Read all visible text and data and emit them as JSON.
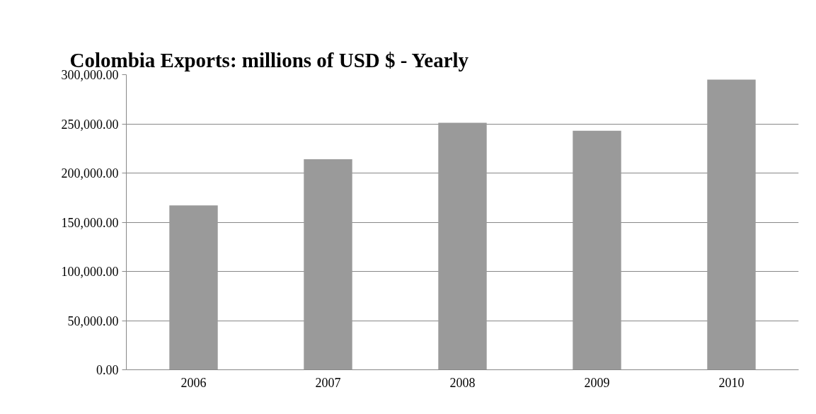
{
  "chart_data": {
    "type": "bar",
    "title": "Colombia Exports: millions of USD $ - Yearly",
    "categories": [
      "2006",
      "2007",
      "2008",
      "2009",
      "2010"
    ],
    "values": [
      167000,
      214000,
      251000,
      243000,
      295000
    ],
    "color": "#9a9a9a",
    "ylim": [
      0,
      300000
    ],
    "yticks": [
      {
        "value": 0,
        "label": "0.00"
      },
      {
        "value": 50000,
        "label": "50,000.00"
      },
      {
        "value": 100000,
        "label": "100,000.00"
      },
      {
        "value": 150000,
        "label": "150,000.00"
      },
      {
        "value": 200000,
        "label": "200,000.00"
      },
      {
        "value": 250000,
        "label": "250,000.00"
      },
      {
        "value": 300000,
        "label": "300,000.00"
      }
    ],
    "grid": "y"
  }
}
